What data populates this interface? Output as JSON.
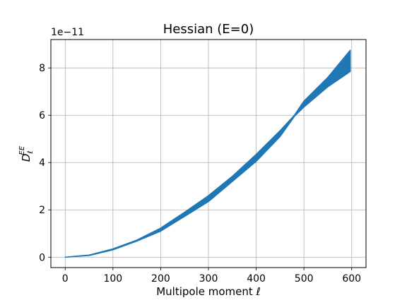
{
  "figure": {
    "title": "Hessian (E=0)",
    "xlabel": "Multipole moment ℓ",
    "ylabel_base": "D",
    "ylabel_sub": "ℓ",
    "ylabel_sup": "EE",
    "offset_label": "1e−11"
  },
  "chart_data": {
    "type": "area",
    "title": "Hessian (E=0)",
    "xlabel": "Multipole moment ℓ",
    "ylabel": "D_ℓ^EE",
    "y_scale_factor": "1e-11",
    "xlim": [
      -30,
      630
    ],
    "ylim": [
      -0.44,
      9.2
    ],
    "xticks": [
      0,
      100,
      200,
      300,
      400,
      500,
      600
    ],
    "yticks": [
      0,
      2,
      4,
      6,
      8
    ],
    "xticklabels": [
      "0",
      "100",
      "200",
      "300",
      "400",
      "500",
      "600"
    ],
    "yticklabels": [
      "0",
      "2",
      "4",
      "6",
      "8"
    ],
    "grid": true,
    "color": "#1f77b4",
    "series": [
      {
        "kind": "band",
        "x": [
          0,
          50,
          100,
          150,
          200,
          250,
          300,
          350,
          400,
          450,
          480,
          500,
          550,
          597
        ],
        "lower": [
          0.0,
          0.07,
          0.31,
          0.68,
          1.1,
          1.72,
          2.35,
          3.2,
          4.05,
          5.1,
          5.95,
          6.35,
          7.2,
          7.85
        ],
        "upper": [
          0.0,
          0.09,
          0.35,
          0.72,
          1.23,
          1.9,
          2.6,
          3.42,
          4.35,
          5.35,
          6.0,
          6.6,
          7.6,
          8.75
        ]
      }
    ]
  }
}
